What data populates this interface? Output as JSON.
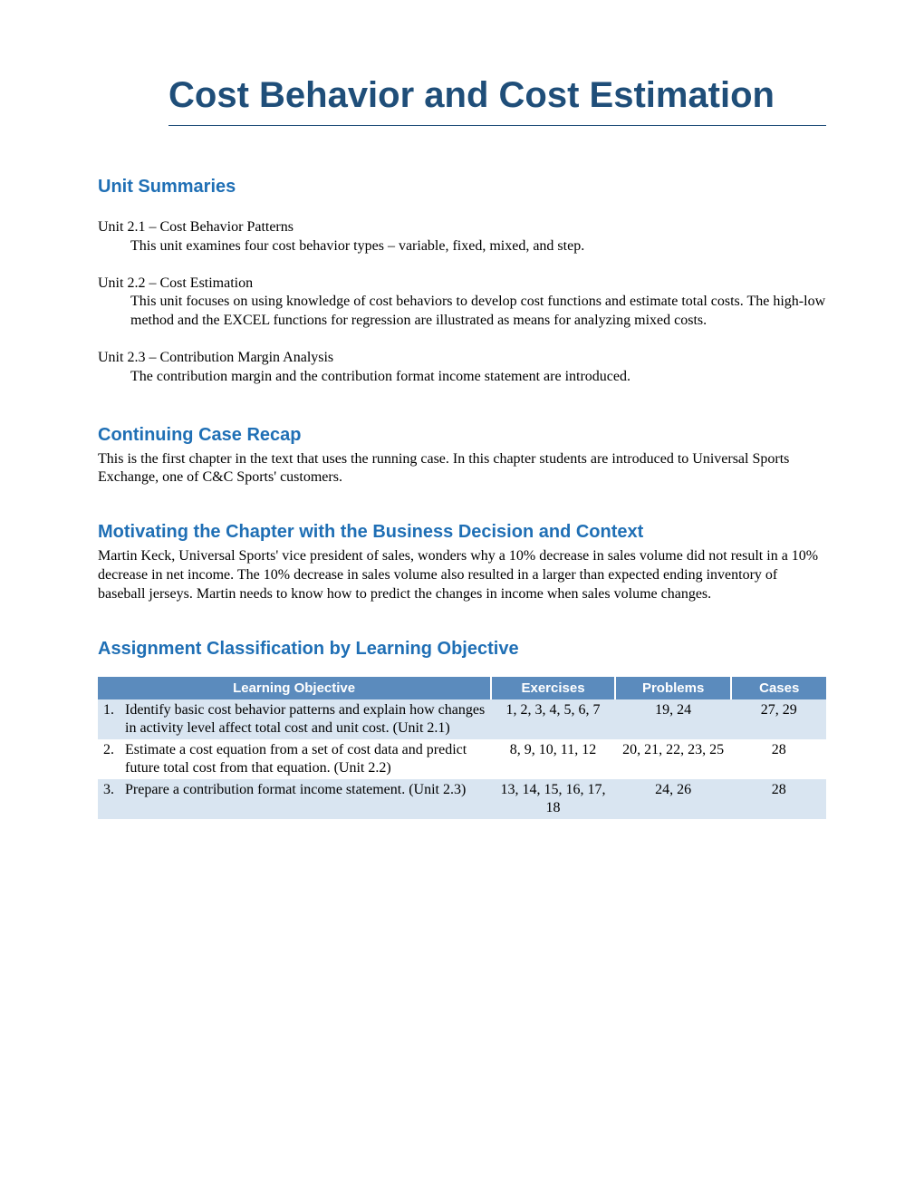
{
  "title": "Cost Behavior and Cost Estimation",
  "sections": {
    "unitSummaries": {
      "heading": "Unit Summaries",
      "units": [
        {
          "title": "Unit 2.1 – Cost Behavior Patterns",
          "desc": "This unit examines four cost behavior types – variable, fixed, mixed, and step."
        },
        {
          "title": "Unit 2.2 – Cost Estimation",
          "desc": "This unit focuses on using knowledge of cost behaviors to develop cost functions and estimate total costs.  The high-low method and the EXCEL functions for regression are illustrated as means for analyzing mixed costs."
        },
        {
          "title": "Unit 2.3 – Contribution Margin Analysis",
          "desc": "The contribution margin and the contribution format income statement are introduced."
        }
      ]
    },
    "caseRecap": {
      "heading": "Continuing Case Recap",
      "body": "This is the first chapter in the text that uses the running case.  In this chapter students are introduced to Universal Sports Exchange, one of C&C Sports' customers."
    },
    "motivating": {
      "heading": "Motivating the Chapter with the Business Decision and Context",
      "body": "Martin Keck, Universal Sports' vice president of sales, wonders why a 10% decrease in sales volume did not result in a 10% decrease in net income.  The 10% decrease in sales volume also resulted in a larger than expected ending inventory of baseball jerseys.  Martin needs to know how to predict the changes in income when sales volume changes."
    },
    "assignment": {
      "heading": "Assignment Classification by Learning Objective",
      "columns": [
        "Learning Objective",
        "Exercises",
        "Problems",
        "Cases"
      ],
      "rows": [
        {
          "num": "1.",
          "objective": "Identify basic cost behavior patterns and explain how changes in activity level affect total cost and unit cost.  (Unit 2.1)",
          "exercises": "1, 2, 3, 4, 5, 6, 7",
          "problems": "19, 24",
          "cases": "27, 29"
        },
        {
          "num": "2.",
          "objective": "Estimate a cost equation from a set of cost data and predict future total cost from that equation.  (Unit 2.2)",
          "exercises": "8, 9, 10, 11, 12",
          "problems": "20, 21, 22, 23, 25",
          "cases": "28"
        },
        {
          "num": "3.",
          "objective": "Prepare a contribution format income statement.  (Unit 2.3)",
          "exercises": "13, 14, 15, 16, 17, 18",
          "problems": "24, 26",
          "cases": "28"
        }
      ]
    }
  },
  "colors": {
    "titleColor": "#1f4e79",
    "headingColor": "#1f6fb5",
    "tableHeaderBg": "#5b8bbd",
    "tableOddRowBg": "#d9e5f1"
  }
}
